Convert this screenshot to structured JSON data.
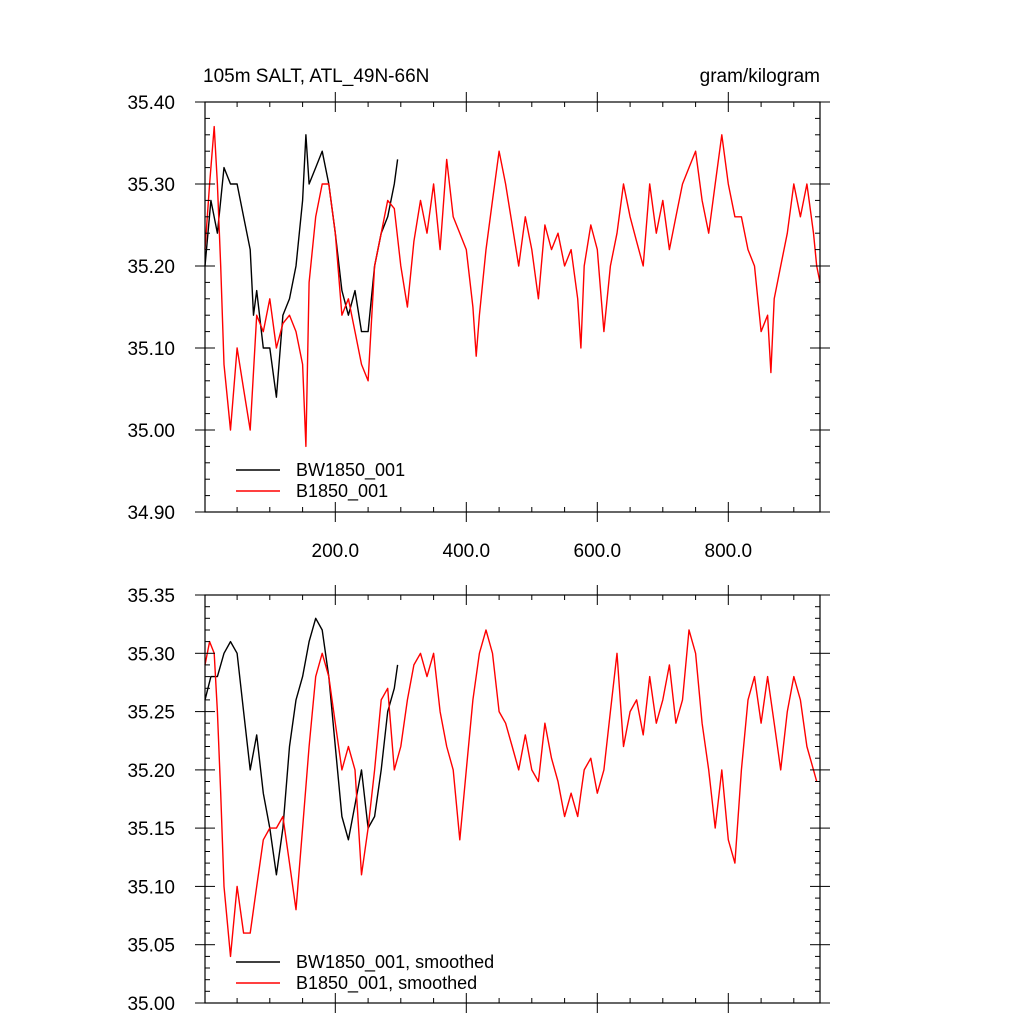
{
  "chart_data": [
    {
      "type": "line",
      "title": "105m SALT, ATL_49N-66N",
      "units": "gram/kilogram",
      "xlabel": "",
      "ylabel": "",
      "xlim": [
        1,
        940
      ],
      "ylim": [
        34.9,
        35.4
      ],
      "xticks": [
        200,
        400,
        600,
        800
      ],
      "xtick_labels": [
        "200.0",
        "400.0",
        "600.0",
        "800.0"
      ],
      "yticks": [
        34.9,
        35.0,
        35.1,
        35.2,
        35.3,
        35.4
      ],
      "ytick_labels": [
        "34.90",
        "35.00",
        "35.10",
        "35.20",
        "35.30",
        "35.40"
      ],
      "grid": false,
      "legend_position": "bottom-left",
      "series": [
        {
          "name": "BW1850_001",
          "color": "#000000",
          "x": [
            1,
            10,
            20,
            30,
            40,
            50,
            60,
            70,
            75,
            80,
            90,
            100,
            110,
            120,
            130,
            140,
            150,
            155,
            160,
            170,
            180,
            190,
            200,
            210,
            220,
            230,
            240,
            250,
            260,
            270,
            280,
            290,
            295
          ],
          "y": [
            35.2,
            35.28,
            35.24,
            35.32,
            35.3,
            35.3,
            35.26,
            35.22,
            35.14,
            35.17,
            35.1,
            35.1,
            35.04,
            35.14,
            35.16,
            35.2,
            35.28,
            35.36,
            35.3,
            35.32,
            35.34,
            35.3,
            35.24,
            35.17,
            35.14,
            35.17,
            35.12,
            35.12,
            35.2,
            35.24,
            35.26,
            35.3,
            35.33
          ]
        },
        {
          "name": "B1850_001",
          "color": "#ff0000",
          "x": [
            1,
            8,
            15,
            20,
            25,
            30,
            40,
            50,
            60,
            70,
            80,
            90,
            100,
            110,
            120,
            130,
            140,
            150,
            155,
            160,
            170,
            180,
            190,
            200,
            210,
            220,
            230,
            240,
            250,
            260,
            270,
            280,
            290,
            300,
            310,
            320,
            330,
            340,
            350,
            360,
            370,
            380,
            390,
            400,
            410,
            415,
            420,
            430,
            440,
            450,
            460,
            470,
            480,
            490,
            500,
            510,
            520,
            530,
            540,
            550,
            560,
            570,
            575,
            580,
            590,
            600,
            610,
            620,
            630,
            640,
            650,
            660,
            670,
            680,
            690,
            700,
            710,
            720,
            730,
            740,
            750,
            760,
            770,
            780,
            790,
            800,
            810,
            820,
            830,
            840,
            850,
            860,
            865,
            870,
            880,
            890,
            900,
            910,
            920,
            930,
            935,
            940
          ],
          "y": [
            35.22,
            35.3,
            35.37,
            35.3,
            35.2,
            35.08,
            35.0,
            35.1,
            35.05,
            35.0,
            35.14,
            35.12,
            35.16,
            35.1,
            35.13,
            35.14,
            35.12,
            35.08,
            34.98,
            35.18,
            35.26,
            35.3,
            35.3,
            35.24,
            35.14,
            35.16,
            35.12,
            35.08,
            35.06,
            35.2,
            35.24,
            35.28,
            35.27,
            35.2,
            35.15,
            35.23,
            35.28,
            35.24,
            35.3,
            35.22,
            35.33,
            35.26,
            35.24,
            35.22,
            35.15,
            35.09,
            35.14,
            35.22,
            35.28,
            35.34,
            35.3,
            35.25,
            35.2,
            35.26,
            35.22,
            35.16,
            35.25,
            35.22,
            35.24,
            35.2,
            35.22,
            35.16,
            35.1,
            35.2,
            35.25,
            35.22,
            35.12,
            35.2,
            35.24,
            35.3,
            35.26,
            35.23,
            35.2,
            35.3,
            35.24,
            35.28,
            35.22,
            35.26,
            35.3,
            35.32,
            35.34,
            35.28,
            35.24,
            35.3,
            35.36,
            35.3,
            35.26,
            35.26,
            35.22,
            35.2,
            35.12,
            35.14,
            35.07,
            35.16,
            35.2,
            35.24,
            35.3,
            35.26,
            35.3,
            35.24,
            35.2,
            35.18
          ]
        }
      ]
    },
    {
      "type": "line",
      "title": "",
      "xlabel": "",
      "ylabel": "",
      "xlim": [
        1,
        940
      ],
      "ylim": [
        35.0,
        35.35
      ],
      "xticks": [
        200,
        400,
        600,
        800
      ],
      "xtick_labels": [],
      "yticks": [
        35.0,
        35.05,
        35.1,
        35.15,
        35.2,
        35.25,
        35.3,
        35.35
      ],
      "ytick_labels": [
        "35.00",
        "35.05",
        "35.10",
        "35.15",
        "35.20",
        "35.25",
        "35.30",
        "35.35"
      ],
      "grid": false,
      "legend_position": "bottom-left",
      "series": [
        {
          "name": "BW1850_001, smoothed",
          "color": "#000000",
          "x": [
            1,
            10,
            20,
            30,
            40,
            50,
            60,
            70,
            80,
            90,
            100,
            110,
            120,
            130,
            140,
            150,
            160,
            170,
            180,
            190,
            200,
            210,
            220,
            230,
            240,
            250,
            260,
            270,
            280,
            290,
            295
          ],
          "y": [
            35.26,
            35.28,
            35.28,
            35.3,
            35.31,
            35.3,
            35.25,
            35.2,
            35.23,
            35.18,
            35.15,
            35.11,
            35.15,
            35.22,
            35.26,
            35.28,
            35.31,
            35.33,
            35.32,
            35.28,
            35.22,
            35.16,
            35.14,
            35.17,
            35.2,
            35.15,
            35.16,
            35.2,
            35.25,
            35.27,
            35.29
          ]
        },
        {
          "name": "B1850_001, smoothed",
          "color": "#ff0000",
          "x": [
            1,
            8,
            15,
            20,
            25,
            30,
            40,
            50,
            60,
            70,
            80,
            90,
            100,
            110,
            120,
            130,
            140,
            150,
            160,
            170,
            180,
            190,
            200,
            210,
            220,
            230,
            240,
            250,
            260,
            270,
            280,
            290,
            300,
            310,
            320,
            330,
            340,
            350,
            360,
            370,
            380,
            390,
            400,
            410,
            420,
            430,
            440,
            450,
            460,
            470,
            480,
            490,
            500,
            510,
            520,
            530,
            540,
            550,
            560,
            570,
            575,
            580,
            590,
            600,
            610,
            620,
            630,
            640,
            650,
            660,
            670,
            680,
            690,
            700,
            710,
            720,
            730,
            740,
            750,
            760,
            770,
            780,
            790,
            800,
            810,
            820,
            830,
            840,
            850,
            860,
            870,
            880,
            890,
            900,
            910,
            920,
            930,
            935
          ],
          "y": [
            35.29,
            35.31,
            35.3,
            35.25,
            35.18,
            35.1,
            35.04,
            35.1,
            35.06,
            35.06,
            35.1,
            35.14,
            35.15,
            35.15,
            35.16,
            35.12,
            35.08,
            35.15,
            35.22,
            35.28,
            35.3,
            35.28,
            35.24,
            35.2,
            35.22,
            35.2,
            35.11,
            35.15,
            35.2,
            35.26,
            35.27,
            35.2,
            35.22,
            35.26,
            35.29,
            35.3,
            35.28,
            35.3,
            35.25,
            35.22,
            35.2,
            35.14,
            35.2,
            35.26,
            35.3,
            35.32,
            35.3,
            35.25,
            35.24,
            35.22,
            35.2,
            35.23,
            35.2,
            35.19,
            35.24,
            35.21,
            35.19,
            35.16,
            35.18,
            35.16,
            35.18,
            35.2,
            35.21,
            35.18,
            35.2,
            35.25,
            35.3,
            35.22,
            35.25,
            35.26,
            35.23,
            35.28,
            35.24,
            35.26,
            35.29,
            35.24,
            35.26,
            35.32,
            35.3,
            35.24,
            35.2,
            35.15,
            35.2,
            35.14,
            35.12,
            35.2,
            35.26,
            35.28,
            35.24,
            35.28,
            35.24,
            35.2,
            35.25,
            35.28,
            35.26,
            35.22,
            35.2,
            35.19
          ]
        }
      ]
    }
  ]
}
